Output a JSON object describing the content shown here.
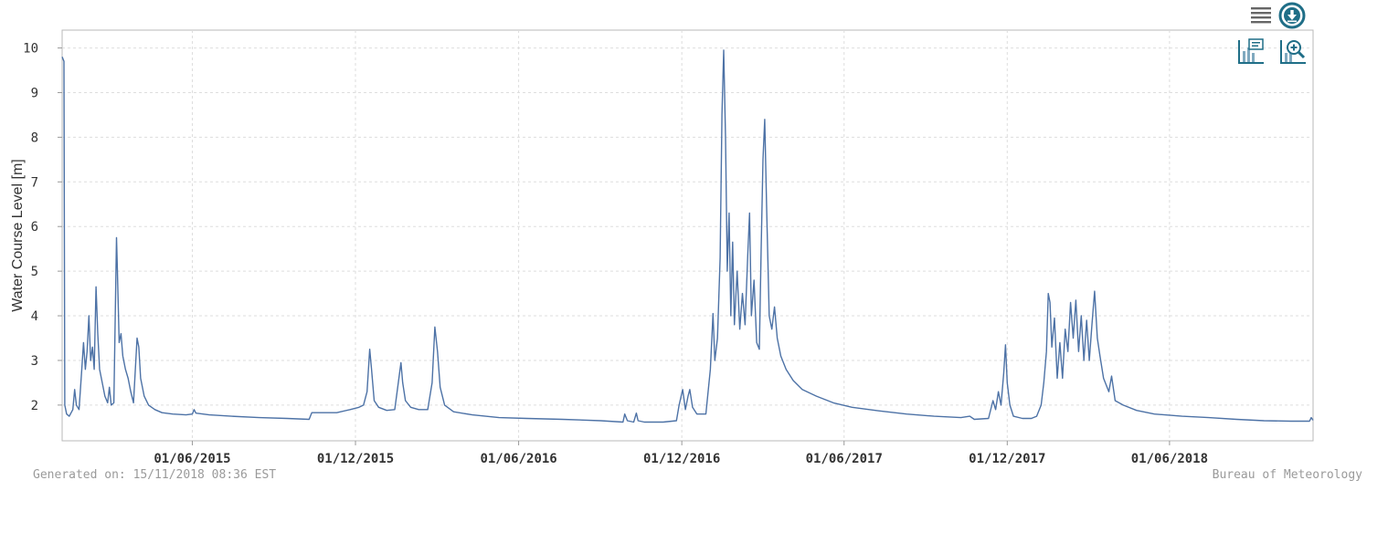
{
  "chart_data": {
    "type": "line",
    "title": "",
    "xlabel": "",
    "ylabel": "Water Course Level [m]",
    "xlim": [
      "2015-01-06",
      "2018-11-09"
    ],
    "ylim": [
      1.2,
      10.4
    ],
    "y_ticks": [
      2,
      3,
      4,
      5,
      6,
      7,
      8,
      9,
      10
    ],
    "x_ticks": [
      "01/06/2015",
      "01/12/2015",
      "01/06/2016",
      "01/12/2016",
      "01/06/2017",
      "01/12/2017",
      "01/06/2018"
    ],
    "x_tick_dates": [
      "2015-06-01",
      "2015-12-01",
      "2016-06-01",
      "2016-12-01",
      "2017-06-01",
      "2017-12-01",
      "2018-06-01"
    ],
    "grid": true,
    "series_color": "#4d72a6",
    "series": [
      {
        "values": [
          [
            "2015-01-06",
            9.8
          ],
          [
            "2015-01-08",
            9.7
          ],
          [
            "2015-01-09",
            2.0
          ],
          [
            "2015-01-11",
            1.8
          ],
          [
            "2015-01-14",
            1.75
          ],
          [
            "2015-01-18",
            1.9
          ],
          [
            "2015-01-20",
            2.35
          ],
          [
            "2015-01-22",
            2.0
          ],
          [
            "2015-01-25",
            1.9
          ],
          [
            "2015-01-28",
            2.8
          ],
          [
            "2015-01-30",
            3.4
          ],
          [
            "2015-02-01",
            2.8
          ],
          [
            "2015-02-03",
            3.2
          ],
          [
            "2015-02-05",
            4.0
          ],
          [
            "2015-02-07",
            3.0
          ],
          [
            "2015-02-09",
            3.3
          ],
          [
            "2015-02-11",
            2.8
          ],
          [
            "2015-02-13",
            4.65
          ],
          [
            "2015-02-15",
            3.6
          ],
          [
            "2015-02-17",
            2.8
          ],
          [
            "2015-02-20",
            2.5
          ],
          [
            "2015-02-23",
            2.2
          ],
          [
            "2015-02-26",
            2.05
          ],
          [
            "2015-02-28",
            2.4
          ],
          [
            "2015-03-02",
            2.0
          ],
          [
            "2015-03-05",
            2.05
          ],
          [
            "2015-03-08",
            5.75
          ],
          [
            "2015-03-09",
            5.0
          ],
          [
            "2015-03-11",
            3.4
          ],
          [
            "2015-03-13",
            3.6
          ],
          [
            "2015-03-15",
            3.1
          ],
          [
            "2015-03-18",
            2.8
          ],
          [
            "2015-03-21",
            2.6
          ],
          [
            "2015-03-24",
            2.3
          ],
          [
            "2015-03-27",
            2.05
          ],
          [
            "2015-03-31",
            3.5
          ],
          [
            "2015-04-02",
            3.3
          ],
          [
            "2015-04-04",
            2.6
          ],
          [
            "2015-04-08",
            2.2
          ],
          [
            "2015-04-13",
            2.0
          ],
          [
            "2015-04-20",
            1.9
          ],
          [
            "2015-04-28",
            1.83
          ],
          [
            "2015-05-10",
            1.8
          ],
          [
            "2015-05-25",
            1.78
          ],
          [
            "2015-06-01",
            1.8
          ],
          [
            "2015-06-03",
            1.9
          ],
          [
            "2015-06-05",
            1.82
          ],
          [
            "2015-06-20",
            1.78
          ],
          [
            "2015-07-15",
            1.75
          ],
          [
            "2015-08-15",
            1.72
          ],
          [
            "2015-09-15",
            1.7
          ],
          [
            "2015-10-10",
            1.68
          ],
          [
            "2015-10-13",
            1.83
          ],
          [
            "2015-11-10",
            1.83
          ],
          [
            "2015-11-25",
            1.9
          ],
          [
            "2015-12-05",
            1.95
          ],
          [
            "2015-12-10",
            2.0
          ],
          [
            "2015-12-14",
            2.3
          ],
          [
            "2015-12-17",
            3.25
          ],
          [
            "2015-12-19",
            2.8
          ],
          [
            "2015-12-22",
            2.1
          ],
          [
            "2015-12-27",
            1.95
          ],
          [
            "2016-01-05",
            1.88
          ],
          [
            "2016-01-14",
            1.9
          ],
          [
            "2016-01-18",
            2.5
          ],
          [
            "2016-01-21",
            2.95
          ],
          [
            "2016-01-23",
            2.5
          ],
          [
            "2016-01-26",
            2.1
          ],
          [
            "2016-02-01",
            1.95
          ],
          [
            "2016-02-10",
            1.9
          ],
          [
            "2016-02-20",
            1.9
          ],
          [
            "2016-02-25",
            2.5
          ],
          [
            "2016-02-28",
            3.75
          ],
          [
            "2016-03-02",
            3.2
          ],
          [
            "2016-03-05",
            2.4
          ],
          [
            "2016-03-10",
            2.0
          ],
          [
            "2016-03-20",
            1.85
          ],
          [
            "2016-04-10",
            1.78
          ],
          [
            "2016-05-10",
            1.72
          ],
          [
            "2016-06-10",
            1.7
          ],
          [
            "2016-07-20",
            1.68
          ],
          [
            "2016-09-01",
            1.65
          ],
          [
            "2016-09-26",
            1.62
          ],
          [
            "2016-09-28",
            1.8
          ],
          [
            "2016-10-01",
            1.65
          ],
          [
            "2016-10-08",
            1.62
          ],
          [
            "2016-10-11",
            1.82
          ],
          [
            "2016-10-13",
            1.65
          ],
          [
            "2016-10-20",
            1.62
          ],
          [
            "2016-11-10",
            1.62
          ],
          [
            "2016-11-25",
            1.65
          ],
          [
            "2016-11-28",
            2.0
          ],
          [
            "2016-12-02",
            2.35
          ],
          [
            "2016-12-05",
            1.9
          ],
          [
            "2016-12-08",
            2.2
          ],
          [
            "2016-12-10",
            2.35
          ],
          [
            "2016-12-13",
            1.95
          ],
          [
            "2016-12-18",
            1.8
          ],
          [
            "2016-12-28",
            1.8
          ],
          [
            "2017-01-02",
            2.8
          ],
          [
            "2017-01-05",
            4.05
          ],
          [
            "2017-01-07",
            3.0
          ],
          [
            "2017-01-10",
            3.5
          ],
          [
            "2017-01-13",
            5.3
          ],
          [
            "2017-01-15",
            8.5
          ],
          [
            "2017-01-17",
            9.95
          ],
          [
            "2017-01-19",
            8.0
          ],
          [
            "2017-01-21",
            5.0
          ],
          [
            "2017-01-23",
            6.3
          ],
          [
            "2017-01-25",
            4.0
          ],
          [
            "2017-01-27",
            5.65
          ],
          [
            "2017-01-29",
            3.8
          ],
          [
            "2017-02-01",
            5.0
          ],
          [
            "2017-02-04",
            3.7
          ],
          [
            "2017-02-07",
            4.5
          ],
          [
            "2017-02-10",
            3.8
          ],
          [
            "2017-02-13",
            5.4
          ],
          [
            "2017-02-15",
            6.3
          ],
          [
            "2017-02-17",
            4.0
          ],
          [
            "2017-02-20",
            4.8
          ],
          [
            "2017-02-23",
            3.4
          ],
          [
            "2017-02-26",
            3.25
          ],
          [
            "2017-02-28",
            5.5
          ],
          [
            "2017-03-02",
            7.5
          ],
          [
            "2017-03-04",
            8.4
          ],
          [
            "2017-03-06",
            6.5
          ],
          [
            "2017-03-09",
            4.0
          ],
          [
            "2017-03-12",
            3.7
          ],
          [
            "2017-03-15",
            4.2
          ],
          [
            "2017-03-18",
            3.5
          ],
          [
            "2017-03-22",
            3.1
          ],
          [
            "2017-03-28",
            2.8
          ],
          [
            "2017-04-05",
            2.55
          ],
          [
            "2017-04-15",
            2.35
          ],
          [
            "2017-05-01",
            2.2
          ],
          [
            "2017-05-20",
            2.05
          ],
          [
            "2017-06-10",
            1.95
          ],
          [
            "2017-07-10",
            1.87
          ],
          [
            "2017-08-10",
            1.8
          ],
          [
            "2017-09-10",
            1.75
          ],
          [
            "2017-10-10",
            1.72
          ],
          [
            "2017-10-20",
            1.75
          ],
          [
            "2017-10-25",
            1.68
          ],
          [
            "2017-11-10",
            1.7
          ],
          [
            "2017-11-15",
            2.1
          ],
          [
            "2017-11-18",
            1.9
          ],
          [
            "2017-11-21",
            2.3
          ],
          [
            "2017-11-24",
            2.0
          ],
          [
            "2017-11-27",
            2.7
          ],
          [
            "2017-11-29",
            3.35
          ],
          [
            "2017-12-01",
            2.5
          ],
          [
            "2017-12-04",
            2.0
          ],
          [
            "2017-12-08",
            1.75
          ],
          [
            "2017-12-18",
            1.7
          ],
          [
            "2017-12-28",
            1.7
          ],
          [
            "2018-01-03",
            1.75
          ],
          [
            "2018-01-08",
            2.0
          ],
          [
            "2018-01-11",
            2.5
          ],
          [
            "2018-01-14",
            3.2
          ],
          [
            "2018-01-16",
            4.5
          ],
          [
            "2018-01-18",
            4.3
          ],
          [
            "2018-01-20",
            3.3
          ],
          [
            "2018-01-23",
            3.95
          ],
          [
            "2018-01-26",
            2.6
          ],
          [
            "2018-01-29",
            3.4
          ],
          [
            "2018-02-01",
            2.6
          ],
          [
            "2018-02-04",
            3.7
          ],
          [
            "2018-02-07",
            3.2
          ],
          [
            "2018-02-10",
            4.3
          ],
          [
            "2018-02-13",
            3.5
          ],
          [
            "2018-02-16",
            4.35
          ],
          [
            "2018-02-19",
            3.2
          ],
          [
            "2018-02-22",
            4.0
          ],
          [
            "2018-02-25",
            3.0
          ],
          [
            "2018-02-28",
            3.9
          ],
          [
            "2018-03-03",
            3.0
          ],
          [
            "2018-03-06",
            3.8
          ],
          [
            "2018-03-09",
            4.55
          ],
          [
            "2018-03-12",
            3.5
          ],
          [
            "2018-03-15",
            3.1
          ],
          [
            "2018-03-19",
            2.6
          ],
          [
            "2018-03-25",
            2.3
          ],
          [
            "2018-03-28",
            2.65
          ],
          [
            "2018-04-01",
            2.1
          ],
          [
            "2018-04-10",
            2.0
          ],
          [
            "2018-04-25",
            1.88
          ],
          [
            "2018-05-15",
            1.8
          ],
          [
            "2018-06-15",
            1.75
          ],
          [
            "2018-07-15",
            1.72
          ],
          [
            "2018-08-15",
            1.68
          ],
          [
            "2018-09-15",
            1.65
          ],
          [
            "2018-10-15",
            1.64
          ],
          [
            "2018-11-05",
            1.64
          ],
          [
            "2018-11-07",
            1.72
          ],
          [
            "2018-11-09",
            1.66
          ]
        ]
      }
    ]
  },
  "toolbar": {
    "menu_icon": "menu-icon",
    "download_icon": "download-icon",
    "legend_icon": "legend-chart-icon",
    "zoom_icon": "zoom-in-chart-icon",
    "accent_color": "#1f6e87"
  },
  "footer": {
    "generated": "Generated on: 15/11/2018 08:36 EST",
    "source": "Bureau of Meteorology"
  }
}
